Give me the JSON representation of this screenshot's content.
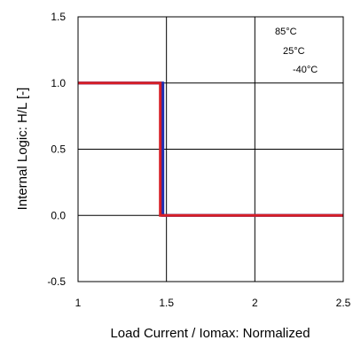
{
  "chart_data": {
    "type": "line",
    "title": "",
    "xlabel": "Load Current / Iomax: Normalized",
    "ylabel": "Internal Logic: H/L [-]",
    "xlim": [
      1,
      2.5
    ],
    "ylim": [
      -0.5,
      1.5
    ],
    "x_ticks": [
      "1",
      "1.5",
      "2",
      "2.5"
    ],
    "y_ticks": [
      "1.5",
      "1.0",
      "0.5",
      "0.0",
      "-0.5"
    ],
    "grid": true,
    "legend_position": "top-right",
    "series": [
      {
        "name": "85°C",
        "color": "#1f2fb0",
        "x": [
          1.0,
          1.48,
          1.48,
          2.5
        ],
        "y": [
          1.0,
          1.0,
          0.0,
          0.0
        ]
      },
      {
        "name": "25°C",
        "color": "#1f2fb0",
        "x": [
          1.0,
          1.475,
          1.475,
          2.5
        ],
        "y": [
          1.0,
          1.0,
          0.0,
          0.0
        ]
      },
      {
        "name": "-40°C",
        "color": "#d71f26",
        "x": [
          1.0,
          1.465,
          1.465,
          2.5
        ],
        "y": [
          1.0,
          1.0,
          0.0,
          0.0
        ]
      }
    ]
  }
}
